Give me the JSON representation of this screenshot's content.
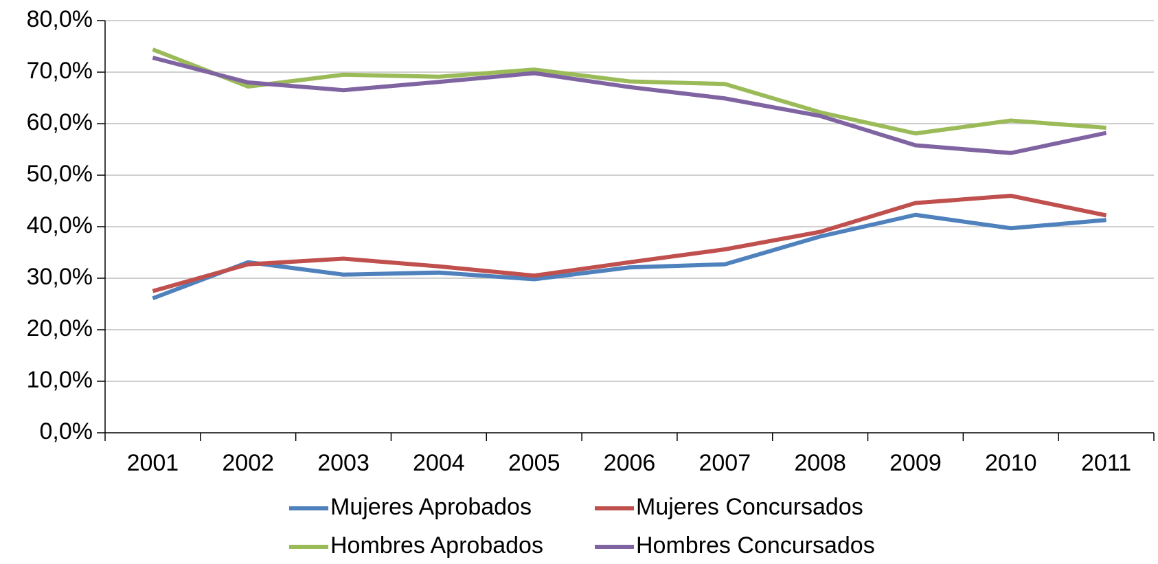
{
  "chart_data": {
    "type": "line",
    "categories": [
      "2001",
      "2002",
      "2003",
      "2004",
      "2005",
      "2006",
      "2007",
      "2008",
      "2009",
      "2010",
      "2011"
    ],
    "series": [
      {
        "name": "Mujeres Aprobados",
        "color": "#4f81bd",
        "values": [
          26.1,
          33.1,
          30.7,
          31.1,
          29.8,
          32.1,
          32.7,
          38.1,
          42.3,
          39.7,
          41.3
        ]
      },
      {
        "name": "Mujeres Concursados",
        "color": "#c0504d",
        "values": [
          27.5,
          32.7,
          33.8,
          32.3,
          30.5,
          33.1,
          35.6,
          39.0,
          44.6,
          46.0,
          42.2
        ]
      },
      {
        "name": "Hombres Aprobados",
        "color": "#9bbb59",
        "values": [
          74.4,
          67.2,
          69.5,
          69.1,
          70.5,
          68.2,
          67.7,
          62.2,
          58.1,
          60.6,
          59.2
        ]
      },
      {
        "name": "Hombres Concursados",
        "color": "#8064a2",
        "values": [
          72.8,
          68.0,
          66.5,
          68.1,
          69.8,
          67.1,
          64.9,
          61.5,
          55.8,
          54.3,
          58.2
        ]
      }
    ],
    "ylim": [
      0,
      80
    ],
    "yticks": [
      {
        "value": 0,
        "label": "0,0%"
      },
      {
        "value": 10,
        "label": "10,0%"
      },
      {
        "value": 20,
        "label": "20,0%"
      },
      {
        "value": 30,
        "label": "30,0%"
      },
      {
        "value": 40,
        "label": "40,0%"
      },
      {
        "value": 50,
        "label": "50,0%"
      },
      {
        "value": 60,
        "label": "60,0%"
      },
      {
        "value": 70,
        "label": "70,0%"
      },
      {
        "value": 80,
        "label": "80,0%"
      }
    ],
    "grid": true,
    "legend": "bottom"
  }
}
